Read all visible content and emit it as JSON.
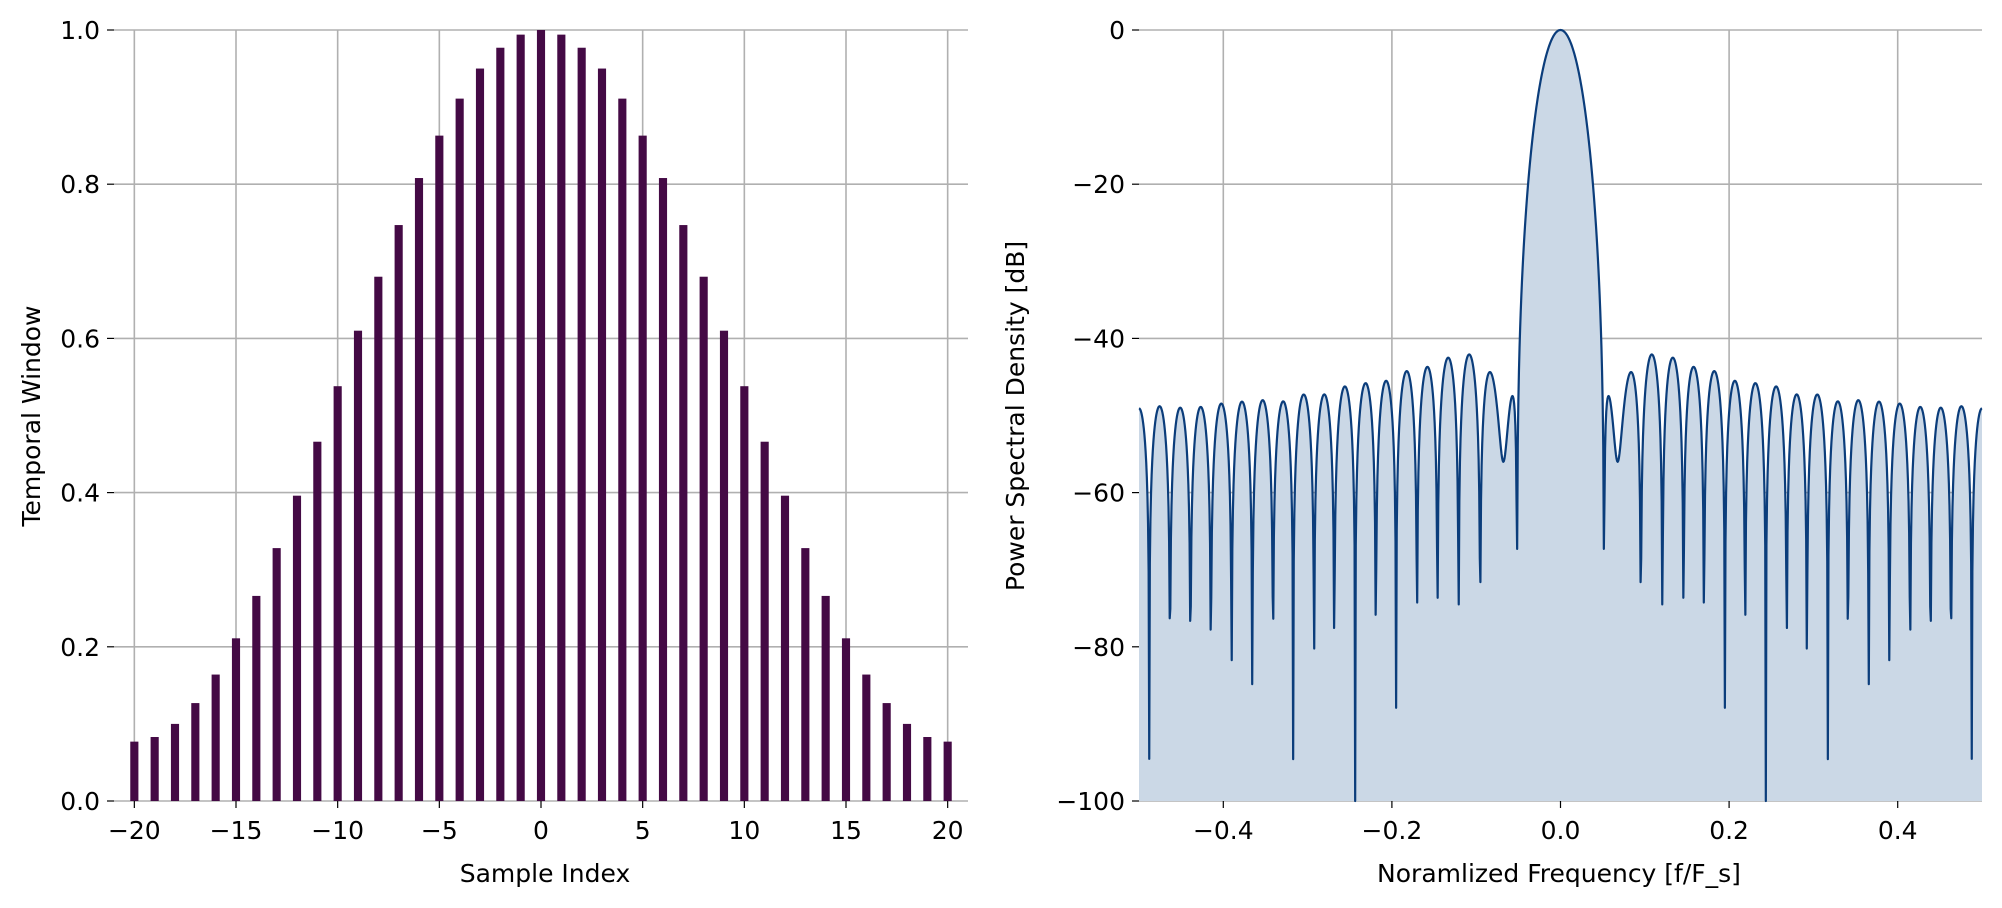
{
  "chart_data": [
    {
      "type": "bar",
      "xlabel": "Sample Index",
      "ylabel": "Temporal Window",
      "xlim": [
        -21,
        21
      ],
      "ylim": [
        0.0,
        1.0
      ],
      "xticks": [
        "−20",
        "−15",
        "−10",
        "−5",
        "0",
        "5",
        "10",
        "15",
        "20"
      ],
      "xtick_values": [
        -20,
        -15,
        -10,
        -5,
        0,
        5,
        10,
        15,
        20
      ],
      "yticks": [
        "0.0",
        "0.2",
        "0.4",
        "0.6",
        "0.8",
        "1.0"
      ],
      "ytick_values": [
        0.0,
        0.2,
        0.4,
        0.6,
        0.8,
        1.0
      ],
      "grid": true,
      "bar_color": "#440a45",
      "x": [
        -20,
        -19,
        -18,
        -17,
        -16,
        -15,
        -14,
        -13,
        -12,
        -11,
        -10,
        -9,
        -8,
        -7,
        -6,
        -5,
        -4,
        -3,
        -2,
        -1,
        0,
        1,
        2,
        3,
        4,
        5,
        6,
        7,
        8,
        9,
        10,
        11,
        12,
        13,
        14,
        15,
        16,
        17,
        18,
        19,
        20
      ],
      "values": [
        0.077,
        0.083,
        0.1,
        0.127,
        0.164,
        0.211,
        0.266,
        0.328,
        0.396,
        0.466,
        0.538,
        0.61,
        0.68,
        0.747,
        0.808,
        0.863,
        0.911,
        0.95,
        0.977,
        0.994,
        1.0,
        0.994,
        0.977,
        0.95,
        0.911,
        0.863,
        0.808,
        0.747,
        0.68,
        0.61,
        0.538,
        0.466,
        0.396,
        0.328,
        0.266,
        0.211,
        0.164,
        0.127,
        0.1,
        0.083,
        0.077
      ]
    },
    {
      "type": "area",
      "xlabel": "Noramlized Frequency [f/F_s]",
      "ylabel": "Power Spectral Density [dB]",
      "xlim": [
        -0.5,
        0.5
      ],
      "ylim": [
        -100,
        0
      ],
      "xticks": [
        "−0.4",
        "−0.2",
        "0.0",
        "0.2",
        "0.4"
      ],
      "xtick_values": [
        -0.4,
        -0.2,
        0.0,
        0.2,
        0.4
      ],
      "yticks": [
        "−100",
        "−80",
        "−60",
        "−40",
        "−20",
        "0"
      ],
      "ytick_values": [
        -100,
        -80,
        -60,
        -40,
        -20,
        0
      ],
      "grid": true,
      "line_color": "#0b3d7b",
      "fill_color": "#cbd8e6",
      "window_length": 41,
      "mainlobe_peak_db": 0,
      "first_sidelobe_db": -47,
      "peak_sidelobe_db": -43
    }
  ]
}
